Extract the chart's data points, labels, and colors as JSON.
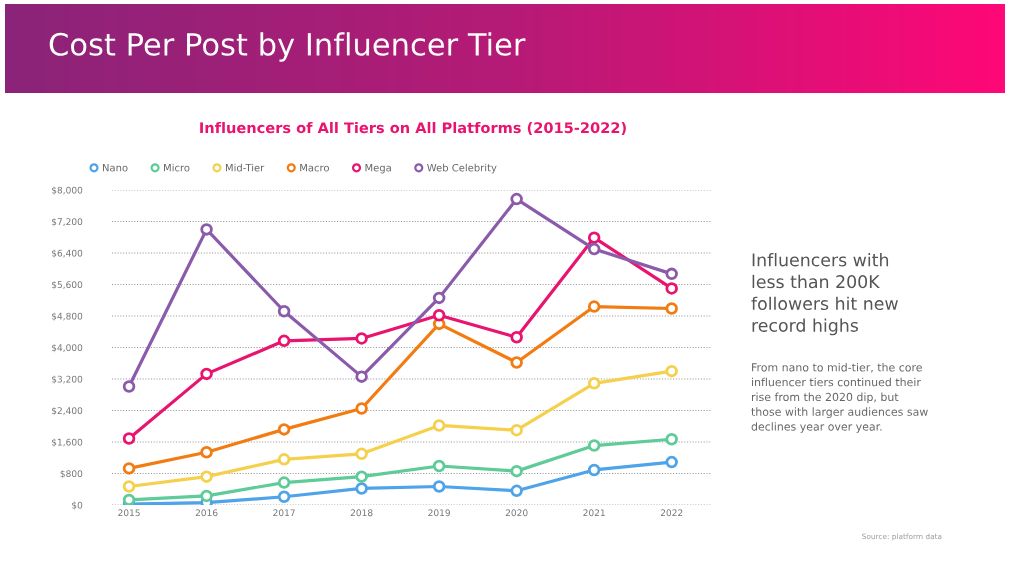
{
  "chart_data": {
    "type": "line",
    "title": "Cost Per Post by Influencer Tier",
    "subtitle": "Influencers of All Tiers on All Platforms (2015-2022)",
    "categories": [
      "2015",
      "2016",
      "2017",
      "2018",
      "2019",
      "2020",
      "2021",
      "2022"
    ],
    "series": [
      {
        "name": "Nano",
        "color": "#4fa3e8",
        "values": [
          20,
          60,
          210,
          420,
          470,
          360,
          890,
          1090
        ]
      },
      {
        "name": "Micro",
        "color": "#5ecb98",
        "values": [
          130,
          230,
          570,
          720,
          990,
          860,
          1510,
          1670
        ]
      },
      {
        "name": "Mid-Tier",
        "color": "#f5d04d",
        "values": [
          470,
          720,
          1160,
          1300,
          2020,
          1900,
          3090,
          3400
        ]
      },
      {
        "name": "Macro",
        "color": "#f27c12",
        "values": [
          930,
          1340,
          1920,
          2450,
          4600,
          3620,
          5040,
          4990
        ]
      },
      {
        "name": "Mega",
        "color": "#e9146f",
        "values": [
          1690,
          3330,
          4170,
          4230,
          4820,
          4260,
          6790,
          5500
        ]
      },
      {
        "name": "Web Celebrity",
        "color": "#8b5bab",
        "values": [
          3010,
          7000,
          4920,
          3260,
          5260,
          7770,
          6500,
          5870
        ]
      }
    ],
    "ylim": [
      0,
      8000
    ],
    "yticks": [
      {
        "value": 0,
        "label": "$0"
      },
      {
        "value": 800,
        "label": "$800"
      },
      {
        "value": 1600,
        "label": "$1,600"
      },
      {
        "value": 2400,
        "label": "$2,400"
      },
      {
        "value": 3200,
        "label": "$3,200"
      },
      {
        "value": 4000,
        "label": "$4,000"
      },
      {
        "value": 4800,
        "label": "$4,800"
      },
      {
        "value": 5600,
        "label": "$5,600"
      },
      {
        "value": 6400,
        "label": "$6,400"
      },
      {
        "value": 7200,
        "label": "$7,200"
      },
      {
        "value": 8000,
        "label": "$8,000"
      }
    ],
    "grid": "y",
    "legend": "top left",
    "marker": "circle",
    "line_style": "solid",
    "annotations": [
      "Influencers with\nless than 200K\nfollowers hit new\nrecord highs",
      "From nano to mid-tier, the core\ninfluencer tiers continued their\nrise from the 2020 dip, but\nthose with larger audiences saw\ndeclines year over year.",
      "Source: platform data"
    ]
  }
}
